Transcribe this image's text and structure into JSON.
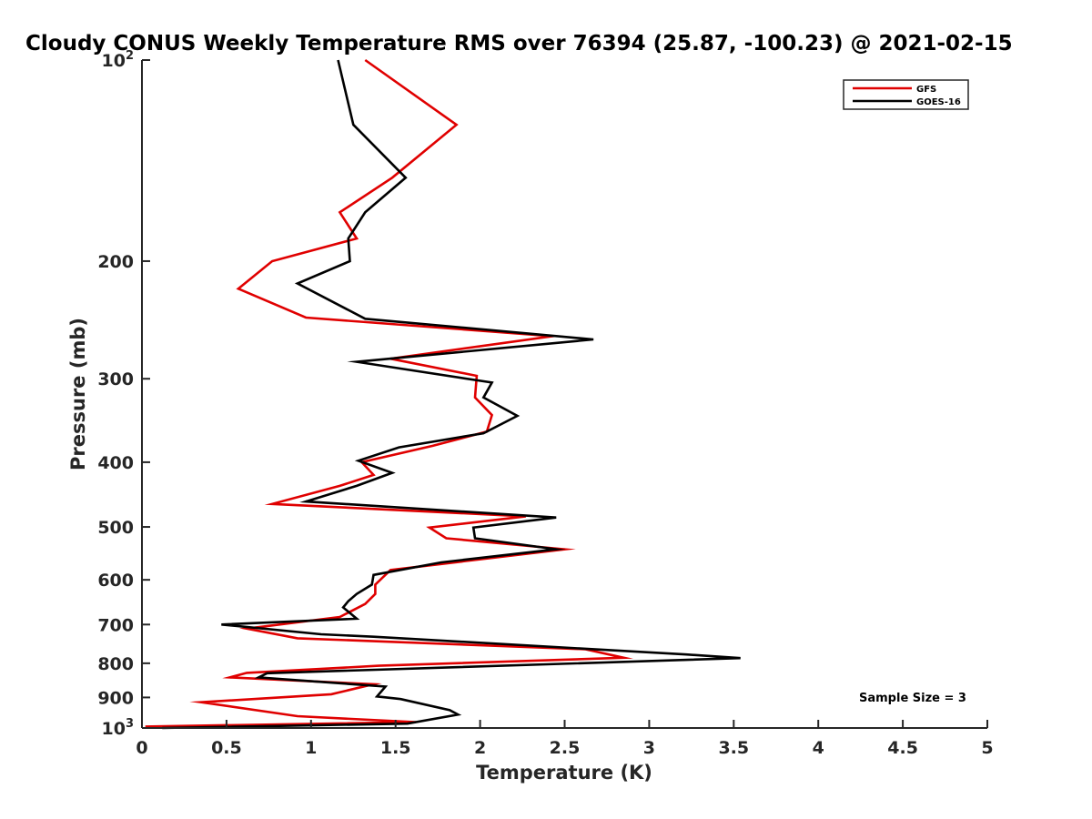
{
  "chart_data": {
    "type": "line",
    "title": "Cloudy CONUS Weekly Temperature RMS over 76394 (25.87, -100.23) @ 2021-02-15",
    "xlabel": "Temperature (K)",
    "ylabel": "Pressure (mb)",
    "xlim": [
      0,
      5
    ],
    "ylim": [
      100,
      1000
    ],
    "y_scale": "log",
    "y_reversed": true,
    "grid": false,
    "legend_position": "top-right",
    "x_ticks": [
      "0",
      "0.5",
      "1",
      "1.5",
      "2",
      "2.5",
      "3",
      "3.5",
      "4",
      "4.5",
      "5"
    ],
    "x_tick_values": [
      0,
      0.5,
      1,
      1.5,
      2,
      2.5,
      3,
      3.5,
      4,
      4.5,
      5
    ],
    "y_ticks": [
      {
        "value": 100,
        "base": "10",
        "exp": "2"
      },
      {
        "value": 200,
        "label": "200"
      },
      {
        "value": 300,
        "label": "300"
      },
      {
        "value": 400,
        "label": "400"
      },
      {
        "value": 500,
        "label": "500"
      },
      {
        "value": 600,
        "label": "600"
      },
      {
        "value": 700,
        "label": "700"
      },
      {
        "value": 800,
        "label": "800"
      },
      {
        "value": 900,
        "label": "900"
      },
      {
        "value": 1000,
        "base": "10",
        "exp": "3"
      }
    ],
    "annotation": "Sample Size = 3",
    "series": [
      {
        "name": "GFS",
        "color": "#e00000",
        "points": [
          [
            1.32,
            100
          ],
          [
            1.86,
            125
          ],
          [
            1.48,
            150
          ],
          [
            1.17,
            169
          ],
          [
            1.27,
            185
          ],
          [
            0.77,
            200
          ],
          [
            0.57,
            220
          ],
          [
            0.97,
            243
          ],
          [
            2.43,
            259
          ],
          [
            1.47,
            280
          ],
          [
            1.98,
            297
          ],
          [
            1.97,
            320
          ],
          [
            2.07,
            340
          ],
          [
            2.04,
            360
          ],
          [
            1.72,
            378
          ],
          [
            1.3,
            400
          ],
          [
            1.37,
            418
          ],
          [
            1.17,
            434
          ],
          [
            0.77,
            462
          ],
          [
            2.27,
            482
          ],
          [
            1.7,
            501
          ],
          [
            1.8,
            520
          ],
          [
            2.5,
            540
          ],
          [
            1.47,
            580
          ],
          [
            1.38,
            610
          ],
          [
            1.38,
            630
          ],
          [
            1.32,
            652
          ],
          [
            1.17,
            682
          ],
          [
            0.62,
            710
          ],
          [
            0.92,
            734
          ],
          [
            2.62,
            762
          ],
          [
            2.85,
            785
          ],
          [
            1.4,
            807
          ],
          [
            0.62,
            827
          ],
          [
            0.52,
            840
          ],
          [
            1.37,
            860
          ],
          [
            1.12,
            890
          ],
          [
            0.35,
            915
          ],
          [
            0.92,
            960
          ],
          [
            1.62,
            980
          ],
          [
            0.02,
            995
          ]
        ]
      },
      {
        "name": "GOES-16",
        "color": "#000000",
        "points": [
          [
            1.16,
            100
          ],
          [
            1.25,
            125
          ],
          [
            1.56,
            150
          ],
          [
            1.32,
            169
          ],
          [
            1.22,
            185
          ],
          [
            1.23,
            200
          ],
          [
            0.92,
            216
          ],
          [
            1.32,
            244
          ],
          [
            2.67,
            262
          ],
          [
            1.27,
            283
          ],
          [
            2.07,
            304
          ],
          [
            2.02,
            320
          ],
          [
            2.22,
            341
          ],
          [
            2.02,
            362
          ],
          [
            1.52,
            380
          ],
          [
            1.28,
            398
          ],
          [
            1.48,
            415
          ],
          [
            1.27,
            434
          ],
          [
            0.97,
            458
          ],
          [
            2.45,
            484
          ],
          [
            1.96,
            501
          ],
          [
            1.97,
            520
          ],
          [
            2.45,
            540
          ],
          [
            1.77,
            565
          ],
          [
            1.37,
            590
          ],
          [
            1.36,
            610
          ],
          [
            1.27,
            630
          ],
          [
            1.22,
            646
          ],
          [
            1.19,
            660
          ],
          [
            1.27,
            686
          ],
          [
            0.47,
            700
          ],
          [
            1.06,
            724
          ],
          [
            1.37,
            730
          ],
          [
            3.22,
            776
          ],
          [
            3.54,
            786
          ],
          [
            0.74,
            828
          ],
          [
            0.69,
            840
          ],
          [
            1.44,
            867
          ],
          [
            1.39,
            897
          ],
          [
            1.53,
            905
          ],
          [
            1.82,
            940
          ],
          [
            1.87,
            955
          ],
          [
            1.57,
            985
          ],
          [
            0.12,
            1000
          ]
        ]
      }
    ]
  }
}
